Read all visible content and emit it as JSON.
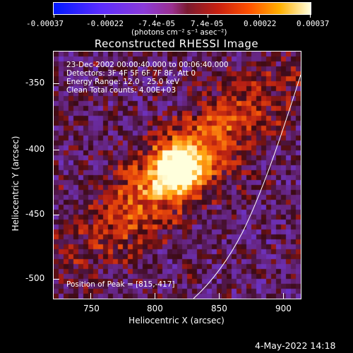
{
  "colorbar": {
    "tick_labels": [
      "-0.00037",
      "-0.00022",
      "-7.4e-05",
      "7.4e-05",
      "0.00022",
      "0.00037"
    ],
    "unit_label": "(photons cm⁻² s⁻¹ asec⁻²)",
    "range": [
      -0.00037,
      0.00037
    ]
  },
  "chart_data": {
    "type": "heatmap",
    "title": "Reconstructed RHESSI Image",
    "xlabel": "Heliocentric X (arcsec)",
    "ylabel": "Heliocentric Y (arcsec)",
    "xlim": [
      720,
      912
    ],
    "ylim": [
      -520,
      -328
    ],
    "x_ticks": [
      "750",
      "800",
      "850",
      "900"
    ],
    "y_ticks": [
      "-350",
      "-400",
      "-450",
      "-500"
    ],
    "peak": {
      "x": 815,
      "y": -417
    },
    "annotations": [
      "23-Dec-2002 00:00:40.000 to 00:06:40.000",
      "Detectors: 3F 4F 5F 6F 7F 8F, Att 0",
      "Energy Range: 12.0 - 25.0 keV",
      "Clean    Total counts: 4.00E+03"
    ],
    "peak_label": "Position of Peak = [815,-417]"
  },
  "footer": {
    "timestamp": "4-May-2022 14:18"
  }
}
